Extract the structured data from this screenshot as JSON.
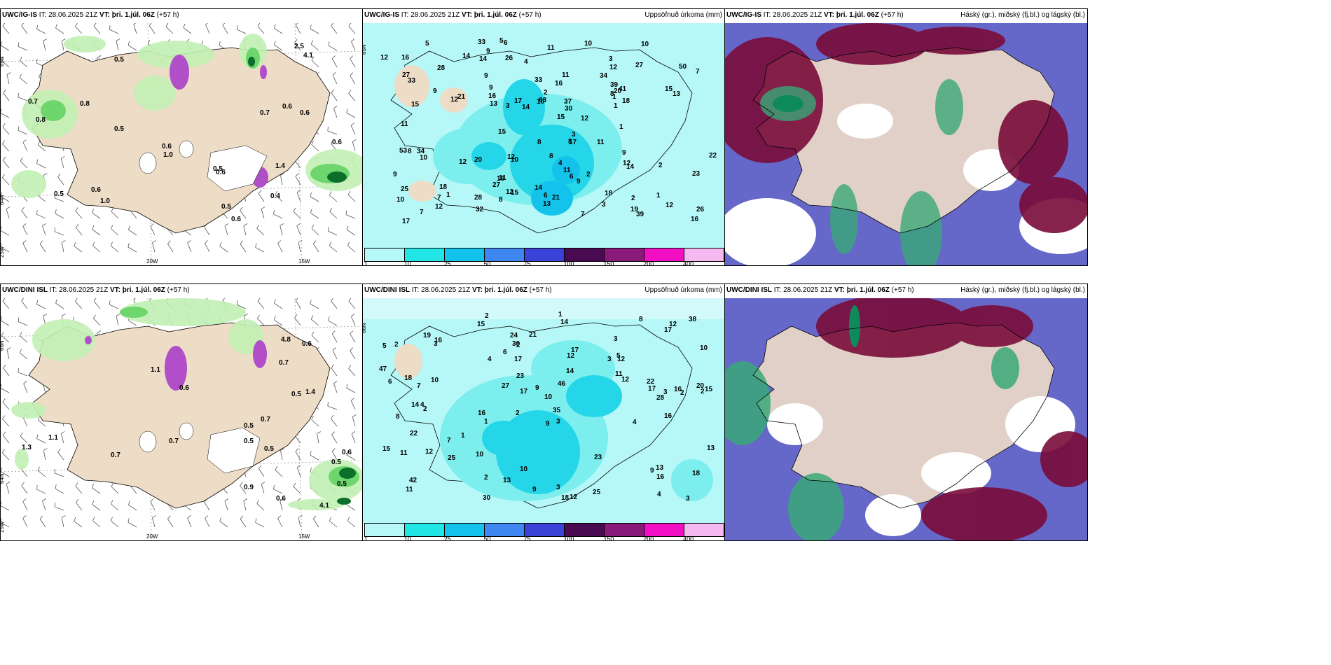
{
  "panels": [
    {
      "id": "p1",
      "model": "UWC/IG-IS",
      "it_label": "IT:",
      "it": "28.06.2025 21Z",
      "vt_label": "VT:",
      "vt": "þri. 1.júl. 06Z",
      "lead": "(+57 h)",
      "right_title": "",
      "axes": [
        "20W",
        "15W",
        "65N",
        "64N",
        "25W"
      ],
      "labels": [
        "0.6",
        "0.5",
        "0.6",
        "0.8",
        "0.6",
        "0.5",
        "0.6",
        "0.5",
        "1.0",
        "1.0",
        "0.5",
        "0.7",
        "0.6",
        "0.5",
        "0.7",
        "2.5",
        "0.8",
        "4.1",
        "1.4",
        "0.6",
        "0.4",
        "0.6"
      ]
    },
    {
      "id": "p2",
      "model": "UWC/IG-IS",
      "it_label": "IT:",
      "it": "28.06.2025 21Z",
      "vt_label": "VT:",
      "vt": "þri. 1.júl. 06Z",
      "lead": "(+57 h)",
      "right_title": "Uppsöfnuð úrkoma (mm)",
      "axes": [
        "65N"
      ],
      "labels": [
        "7",
        "2",
        "3",
        "4",
        "4",
        "10",
        "1",
        "3",
        "2",
        "27",
        "16",
        "13",
        "15",
        "11",
        "18",
        "16",
        "12",
        "10",
        "8",
        "7",
        "12",
        "12",
        "13",
        "11",
        "14",
        "12",
        "17",
        "16",
        "13",
        "9",
        "12",
        "10",
        "11",
        "17",
        "8",
        "7",
        "6",
        "18",
        "15",
        "14",
        "12",
        "11",
        "9",
        "8",
        "1",
        "3",
        "2",
        "21",
        "22",
        "26",
        "33",
        "63",
        "16",
        "19",
        "18",
        "28",
        "15",
        "14",
        "12",
        "9",
        "30",
        "39",
        "20",
        "50",
        "39",
        "34",
        "10",
        "7",
        "32",
        "37",
        "21",
        "17",
        "15",
        "20",
        "28",
        "53",
        "34",
        "27",
        "33",
        "8",
        "16",
        "8",
        "41",
        "6",
        "14",
        "11",
        "9",
        "33",
        "27",
        "10",
        "11",
        "25",
        "26",
        "15",
        "12",
        "10",
        "9",
        "5",
        "3",
        "23",
        "9",
        "14",
        "12",
        "2",
        "1",
        "1",
        "6",
        "1",
        "12",
        "8",
        "5",
        "9"
      ]
    },
    {
      "id": "p3",
      "model": "UWC/IG-IS",
      "it_label": "IT:",
      "it": "28.06.2025 21Z",
      "vt_label": "VT:",
      "vt": "þri. 1.júl. 06Z",
      "lead": "(+57 h)",
      "right_title": "Háský (gr.), miðský (fj.bl.) og lágský (bl.)",
      "axes": [],
      "labels": []
    },
    {
      "id": "p4",
      "model": "UWC/DINI ISL",
      "it_label": "IT:",
      "it": "28.06.2025 21Z",
      "vt_label": "VT:",
      "vt": "þri. 1.júl. 06Z",
      "lead": "(+57 h)",
      "right_title": "",
      "axes": [
        "20W",
        "15W",
        "66N",
        "64N",
        "25W"
      ],
      "labels": [
        "0.5",
        "0.6",
        "0.5",
        "0.5",
        "0.9",
        "0.7",
        "1.4",
        "0.6",
        "0.5",
        "0.6",
        "0.7",
        "0.5",
        "1.3",
        "0.5",
        "0.7",
        "4.1",
        "0.6",
        "1.1",
        "4.8",
        "1.1",
        "0.7"
      ]
    },
    {
      "id": "p5",
      "model": "UWC/DINI ISL",
      "it_label": "IT:",
      "it": "28.06.2025 21Z",
      "vt_label": "VT:",
      "vt": "þri. 1.júl. 06Z",
      "lead": "(+57 h)",
      "right_title": "Uppsöfnuð úrkoma (mm)",
      "axes": [
        "66N"
      ],
      "labels": [
        "2",
        "3",
        "2",
        "2",
        "3",
        "4",
        "2",
        "3",
        "8",
        "12",
        "10",
        "11",
        "15",
        "16",
        "18",
        "12",
        "10",
        "8",
        "12",
        "7",
        "7",
        "14",
        "15",
        "16",
        "15",
        "18",
        "17",
        "17",
        "13",
        "11",
        "9",
        "17",
        "12",
        "27",
        "23",
        "13",
        "22",
        "13",
        "38",
        "21",
        "42",
        "30",
        "25",
        "19",
        "9",
        "12",
        "16",
        "5",
        "47",
        "35",
        "30",
        "28",
        "46",
        "17",
        "14",
        "25",
        "23",
        "9",
        "12",
        "17",
        "18",
        "16",
        "16",
        "10",
        "9",
        "6",
        "3",
        "2",
        "4",
        "10",
        "22",
        "24",
        "20",
        "11",
        "14",
        "10",
        "2",
        "3",
        "2",
        "1",
        "1",
        "3",
        "4",
        "5",
        "6",
        "2",
        "3",
        "4",
        "1"
      ]
    },
    {
      "id": "p6",
      "model": "UWC/DINI ISL",
      "it_label": "IT:",
      "it": "28.06.2025 21Z",
      "vt_label": "VT:",
      "vt": "þri. 1.júl. 06Z",
      "lead": "(+57 h)",
      "right_title": "Háský (gr.), miðský (fj.bl.) og lágský (bl.)",
      "axes": [],
      "labels": []
    }
  ],
  "colorbar": {
    "ticks": [
      "1",
      "10",
      "25",
      "50",
      "75",
      "100",
      "150",
      "200",
      "400"
    ],
    "colors": [
      "#b6f7f7",
      "#22e6e6",
      "#14c3ec",
      "#3e87f0",
      "#3a42d8",
      "#4a0a52",
      "#8a1a7a",
      "#f20ec2",
      "#f6b8f0"
    ]
  },
  "colors": {
    "land": "#eddcc6",
    "precip_light": "#b6f7f7",
    "precip_mid": "#7ceeee",
    "precip_heavy": "#25d6e8",
    "green_light": "#c2f0b4",
    "green_mid": "#6fd66d",
    "green_dark": "#0d6e2c",
    "purple": "#b14fc9",
    "high_cloud": "#7a0c3a",
    "mid_cloud": "#6567c9",
    "low_cloud": "#3aa878"
  }
}
